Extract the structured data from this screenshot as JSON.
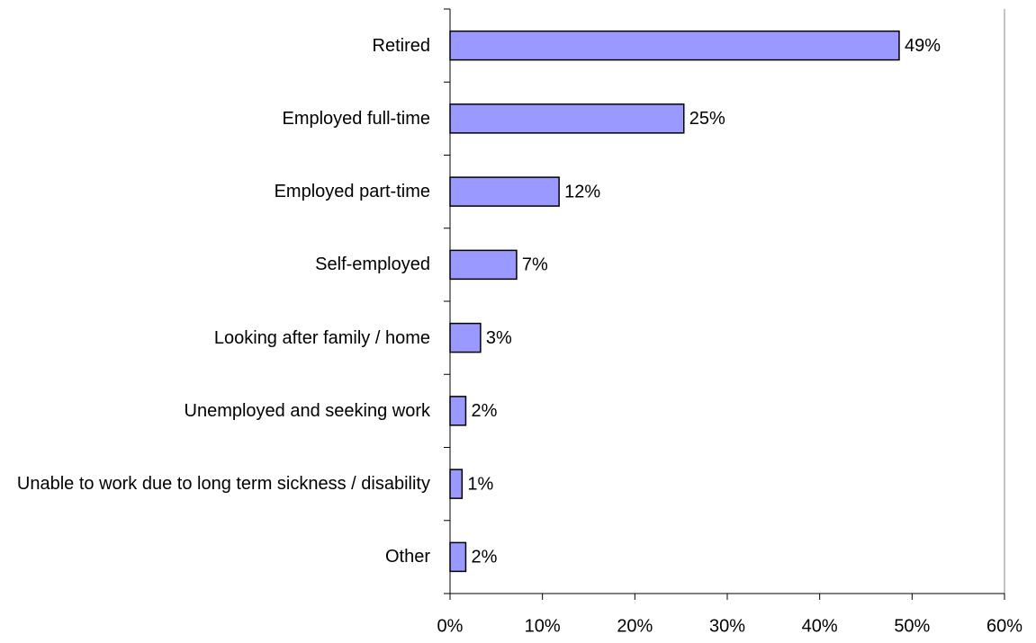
{
  "chart_data": {
    "type": "barh",
    "categories": [
      "Retired",
      "Employed full-time",
      "Employed part-time",
      "Self-employed",
      "Looking after family / home",
      "Unemployed and seeking work",
      "Unable to work due to long term sickness / disability",
      "Other"
    ],
    "values": [
      48.6,
      25.3,
      11.8,
      7.2,
      3.3,
      1.7,
      1.3,
      1.7
    ],
    "value_labels": [
      "49%",
      "25%",
      "12%",
      "7%",
      "3%",
      "2%",
      "1%",
      "2%"
    ],
    "color": "#9999ff",
    "xlim": [
      0,
      60
    ],
    "xticks": [
      {
        "value": 0,
        "label": "0%"
      },
      {
        "value": 10,
        "label": "10%"
      },
      {
        "value": 20,
        "label": "20%"
      },
      {
        "value": 30,
        "label": "30%"
      },
      {
        "value": 40,
        "label": "40%"
      },
      {
        "value": 50,
        "label": "50%"
      },
      {
        "value": 60,
        "label": "60%"
      }
    ]
  }
}
